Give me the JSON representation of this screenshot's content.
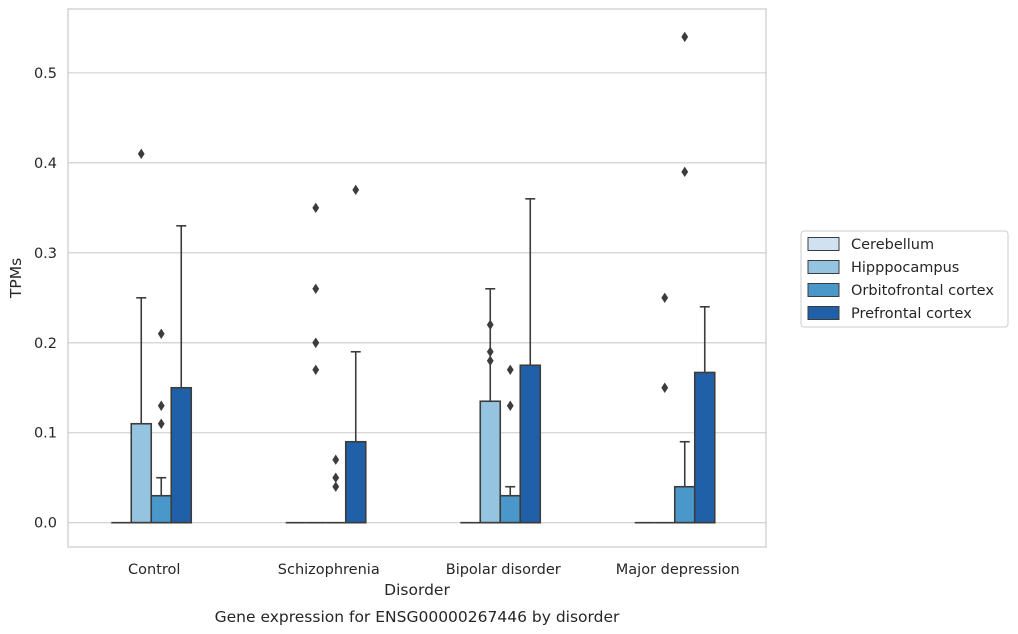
{
  "chart_data": {
    "type": "box",
    "categories": [
      "Control",
      "Schizophrenia",
      "Bipolar disorder",
      "Major depression"
    ],
    "xlabel": "Disorder",
    "ylabel": "TPMs",
    "caption": "Gene expression for ENSG00000267446 by disorder",
    "ylim": [
      -0.027,
      0.571
    ],
    "yticks": [
      0.0,
      0.1,
      0.2,
      0.3,
      0.4,
      0.5
    ],
    "ytick_labels": [
      "0.0",
      "0.1",
      "0.2",
      "0.3",
      "0.4",
      "0.5"
    ],
    "grid": "y",
    "legend_position": "right",
    "series": [
      {
        "name": "Cerebellum",
        "color": "#d0e1f2",
        "boxes": [
          {
            "q1": 0,
            "median": 0,
            "q3": 0,
            "whisker_low": 0,
            "whisker_high": 0,
            "outliers": []
          },
          {
            "q1": 0,
            "median": 0,
            "q3": 0,
            "whisker_low": 0,
            "whisker_high": 0,
            "outliers": []
          },
          {
            "q1": 0,
            "median": 0,
            "q3": 0,
            "whisker_low": 0,
            "whisker_high": 0,
            "outliers": []
          },
          {
            "q1": 0,
            "median": 0,
            "q3": 0,
            "whisker_low": 0,
            "whisker_high": 0,
            "outliers": []
          }
        ]
      },
      {
        "name": "Hipppocampus",
        "color": "#94c4df",
        "boxes": [
          {
            "q1": 0,
            "median": 0,
            "q3": 0.11,
            "whisker_low": 0,
            "whisker_high": 0.25,
            "outliers": [
              0.41
            ]
          },
          {
            "q1": 0,
            "median": 0,
            "q3": 0,
            "whisker_low": 0,
            "whisker_high": 0,
            "outliers": [
              0.35,
              0.2,
              0.26,
              0.2,
              0.17
            ]
          },
          {
            "q1": 0,
            "median": 0,
            "q3": 0.135,
            "whisker_low": 0,
            "whisker_high": 0.26,
            "outliers": [
              0.22,
              0.19,
              0.18
            ]
          },
          {
            "q1": 0,
            "median": 0,
            "q3": 0,
            "whisker_low": 0,
            "whisker_high": 0,
            "outliers": [
              0.15,
              0.25
            ]
          }
        ]
      },
      {
        "name": "Orbitofrontal cortex",
        "color": "#4a98c9",
        "boxes": [
          {
            "q1": 0,
            "median": 0,
            "q3": 0.03,
            "whisker_low": 0,
            "whisker_high": 0.05,
            "outliers": [
              0.21,
              0.13,
              0.11
            ]
          },
          {
            "q1": 0,
            "median": 0,
            "q3": 0,
            "whisker_low": 0,
            "whisker_high": 0,
            "outliers": [
              0.07,
              0.05,
              0.04
            ]
          },
          {
            "q1": 0,
            "median": 0,
            "q3": 0.03,
            "whisker_low": 0,
            "whisker_high": 0.04,
            "outliers": [
              0.17,
              0.13
            ]
          },
          {
            "q1": 0,
            "median": 0,
            "q3": 0.04,
            "whisker_low": 0,
            "whisker_high": 0.09,
            "outliers": [
              0.54,
              0.39
            ]
          }
        ]
      },
      {
        "name": "Prefrontal cortex",
        "color": "#2060a8",
        "boxes": [
          {
            "q1": 0,
            "median": 0,
            "q3": 0.15,
            "whisker_low": 0,
            "whisker_high": 0.33,
            "outliers": []
          },
          {
            "q1": 0,
            "median": 0,
            "q3": 0.09,
            "whisker_low": 0,
            "whisker_high": 0.19,
            "outliers": [
              0.37
            ]
          },
          {
            "q1": 0,
            "median": 0,
            "q3": 0.175,
            "whisker_low": 0,
            "whisker_high": 0.36,
            "outliers": []
          },
          {
            "q1": 0,
            "median": 0,
            "q3": 0.167,
            "whisker_low": 0,
            "whisker_high": 0.24,
            "outliers": []
          }
        ]
      }
    ]
  }
}
